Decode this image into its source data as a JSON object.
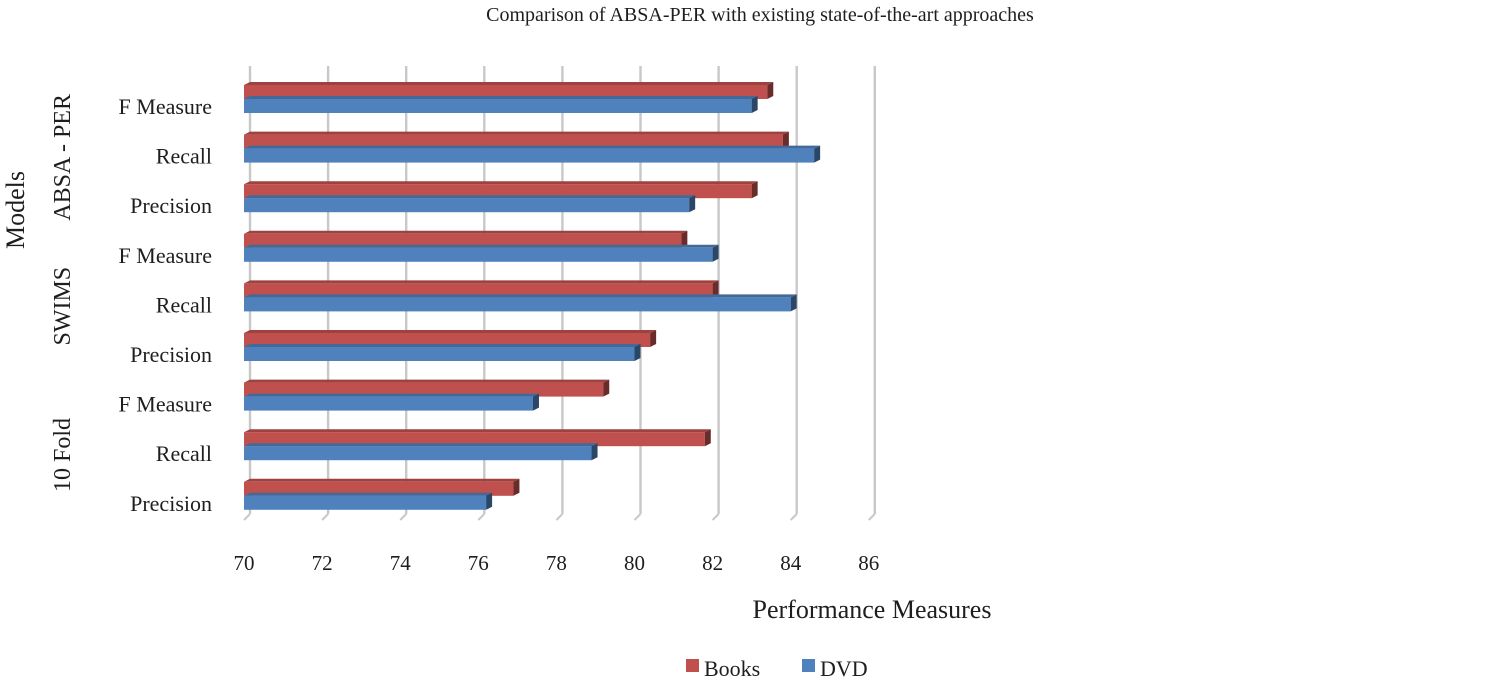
{
  "chart_data": {
    "type": "bar",
    "orientation": "horizontal",
    "title": "Comparison of ABSA-PER with existing state-of-the-art approaches",
    "xlabel": "Performance Measures",
    "ylabel": "Models",
    "xlim": [
      70,
      86
    ],
    "x_ticks": [
      70,
      72,
      74,
      76,
      78,
      80,
      82,
      84,
      86
    ],
    "grid": true,
    "legend_position": "bottom",
    "groups": [
      {
        "name": "ABSA - PER",
        "categories": [
          "F Measure",
          "Recall",
          "Precision"
        ]
      },
      {
        "name": "SWIMS",
        "categories": [
          "F Measure",
          "Recall",
          "Precision"
        ]
      },
      {
        "name": "10 Fold",
        "categories": [
          "F Measure",
          "Recall",
          "Precision"
        ]
      }
    ],
    "series": [
      {
        "name": "Books",
        "color": "#c0504d",
        "values": [
          83.4,
          83.8,
          83.0,
          81.2,
          82.0,
          80.4,
          79.2,
          81.8,
          76.9
        ]
      },
      {
        "name": "DVD",
        "color": "#4f81bd",
        "values": [
          83.0,
          84.6,
          81.4,
          82.0,
          84.0,
          80.0,
          77.4,
          78.9,
          76.2
        ]
      }
    ]
  }
}
